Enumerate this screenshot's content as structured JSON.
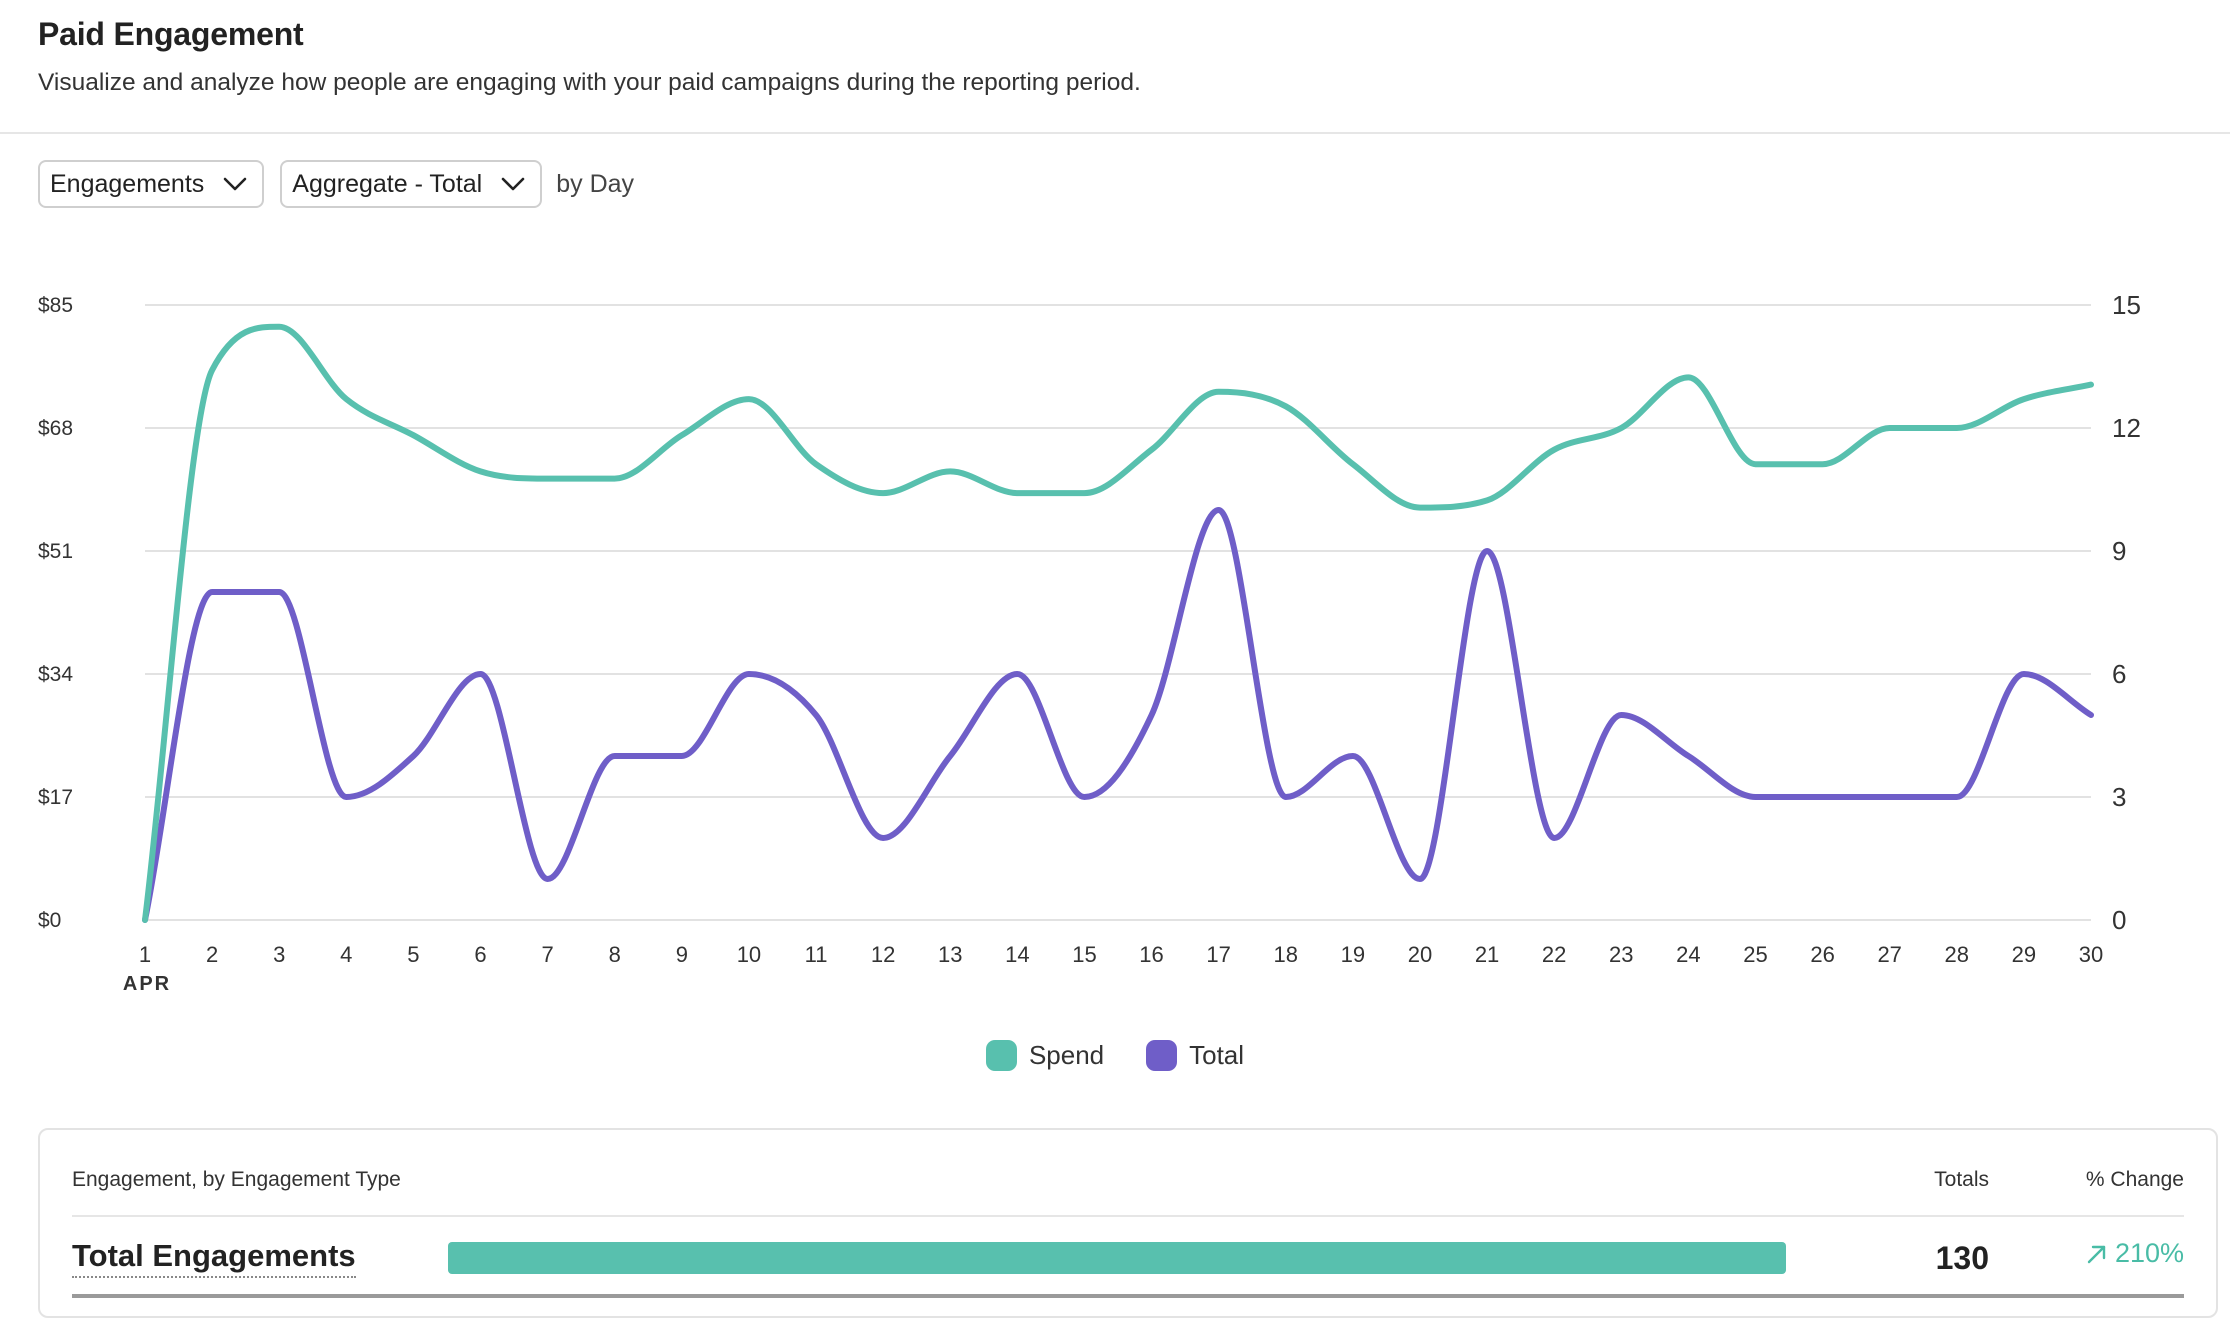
{
  "header": {
    "title": "Paid Engagement",
    "subtitle": "Visualize and analyze how people are engaging with your paid campaigns during the reporting period."
  },
  "controls": {
    "metric_select": "Engagements",
    "aggregate_select": "Aggregate - Total",
    "granularity_text": "by Day",
    "chevron_icon": "chevron-down-icon"
  },
  "legend": {
    "spend_label": "Spend",
    "total_label": "Total"
  },
  "chart_data": {
    "type": "line",
    "x": [
      1,
      2,
      3,
      4,
      5,
      6,
      7,
      8,
      9,
      10,
      11,
      12,
      13,
      14,
      15,
      16,
      17,
      18,
      19,
      20,
      21,
      22,
      23,
      24,
      25,
      26,
      27,
      28,
      29,
      30
    ],
    "x_month_label": "APR",
    "left_axis": {
      "ticks": [
        "$0",
        "$17",
        "$34",
        "$51",
        "$68",
        "$85"
      ],
      "range": [
        0,
        85
      ]
    },
    "right_axis": {
      "ticks": [
        "0",
        "3",
        "6",
        "9",
        "12",
        "15"
      ],
      "range": [
        0,
        15
      ]
    },
    "grid": true,
    "legend_position": "bottom-center",
    "series": [
      {
        "name": "Spend",
        "axis": "left",
        "color": "#58c0ae",
        "values": [
          0,
          76,
          82,
          72,
          67,
          62,
          61,
          61,
          67,
          72,
          63,
          59,
          62,
          59,
          59,
          65,
          73,
          71,
          63,
          57,
          58,
          65,
          68,
          75,
          63,
          63,
          68,
          68,
          72,
          74
        ]
      },
      {
        "name": "Total",
        "axis": "right",
        "color": "#6f5ec8",
        "values": [
          0,
          8,
          8,
          3,
          4,
          6,
          1,
          4,
          4,
          6,
          5,
          2,
          4,
          6,
          3,
          5,
          10,
          3,
          4,
          1,
          9,
          2,
          5,
          4,
          3,
          3,
          3,
          3,
          6,
          5
        ]
      }
    ]
  },
  "table": {
    "header_label": "Engagement, by Engagement Type",
    "totals_header": "Totals",
    "change_header": "% Change",
    "rows": [
      {
        "label": "Total Engagements",
        "total": "130",
        "change": "210%",
        "bar_fraction": 1.0,
        "bar_color": "#58c0ae",
        "trend_icon": "arrow-up-right-icon"
      }
    ]
  }
}
